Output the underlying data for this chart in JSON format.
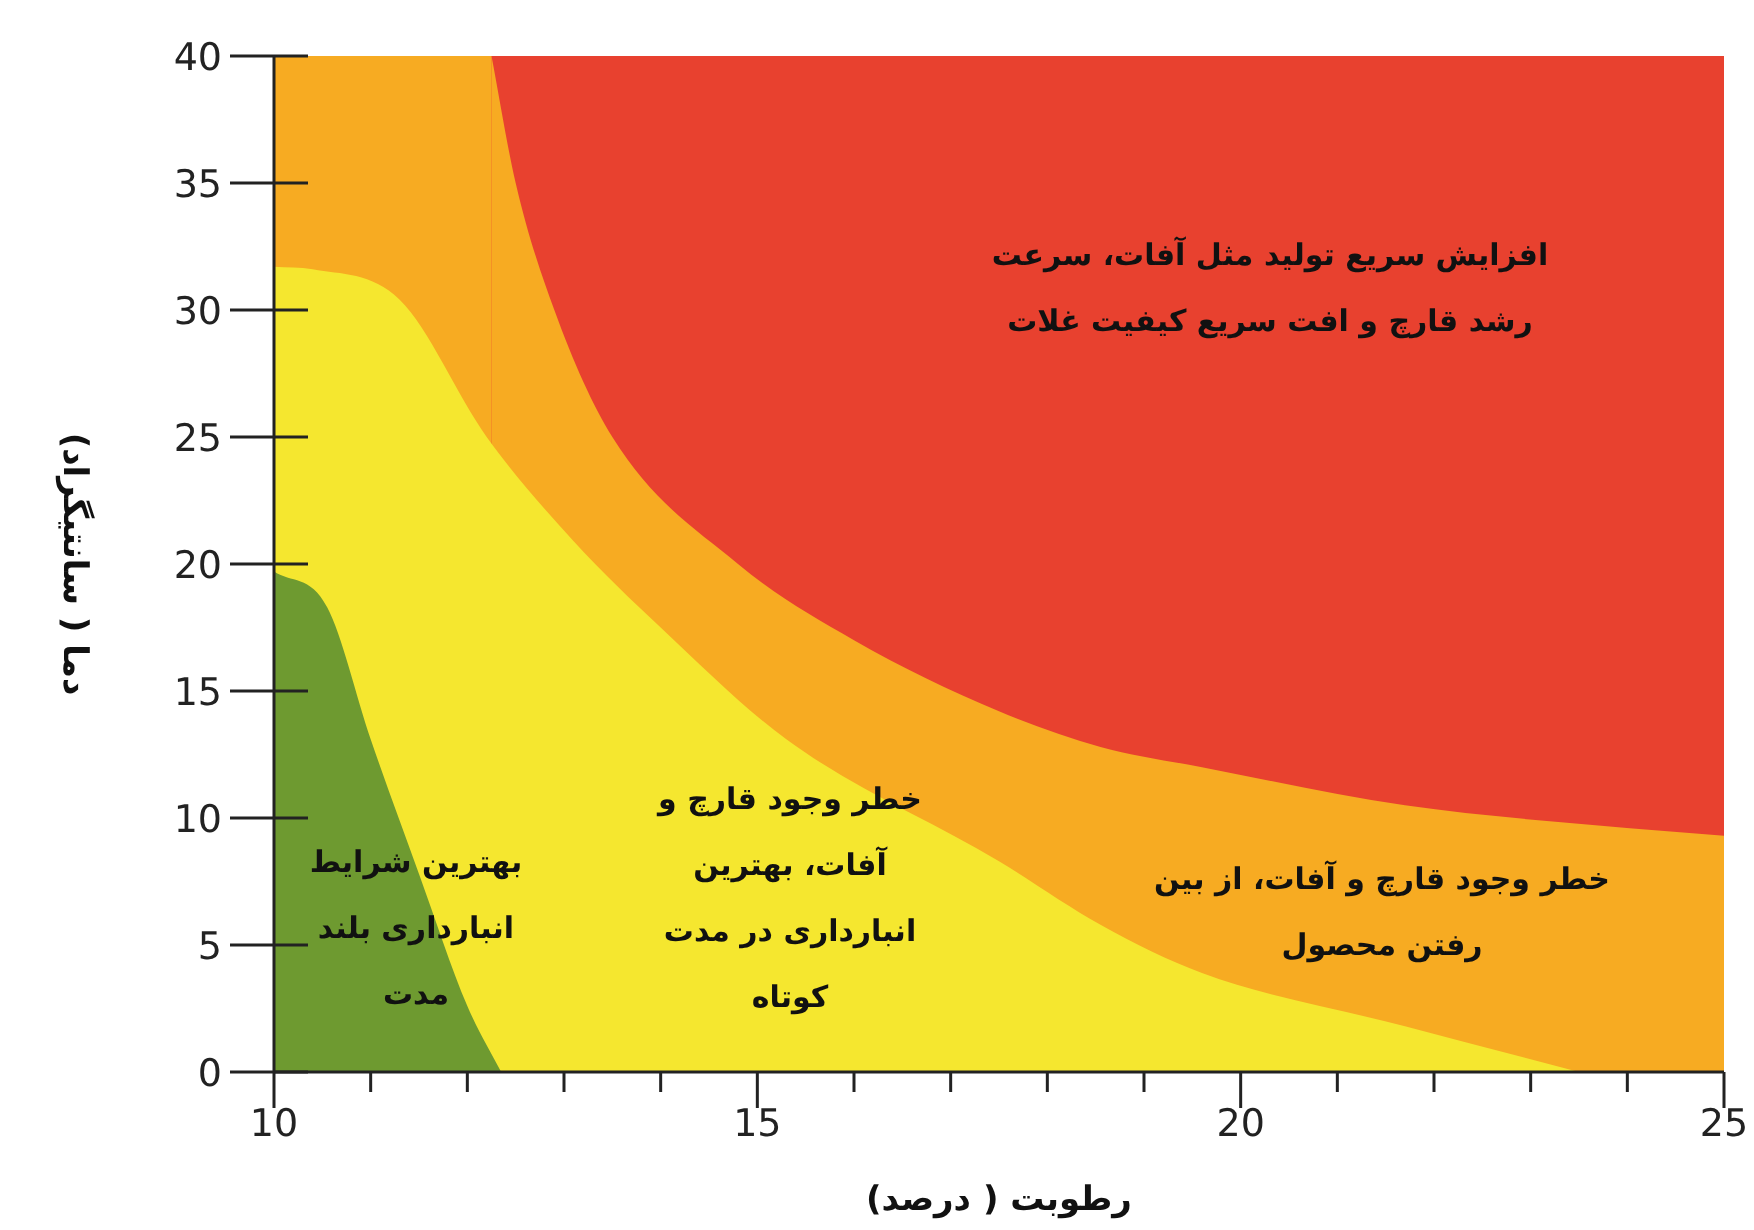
{
  "chart_data": {
    "type": "area",
    "xlabel": "رطوبت ( درصد)",
    "ylabel": "دما ( سانتیگراد)",
    "xlim": [
      10,
      25
    ],
    "ylim": [
      0,
      40
    ],
    "xticks": [
      10,
      {
        "value": 11,
        "label": null
      },
      {
        "value": 12,
        "label": null
      },
      {
        "value": 13,
        "label": null
      },
      {
        "value": 14,
        "label": null
      },
      15,
      {
        "value": 16,
        "label": null
      },
      {
        "value": 17,
        "label": null
      },
      {
        "value": 18,
        "label": null
      },
      {
        "value": 19,
        "label": null
      },
      20,
      {
        "value": 21,
        "label": null
      },
      {
        "value": 22,
        "label": null
      },
      {
        "value": 23,
        "label": null
      },
      {
        "value": 24,
        "label": null
      },
      25
    ],
    "yticks": [
      0,
      5,
      10,
      15,
      20,
      25,
      30,
      35,
      40
    ],
    "series": [
      {
        "color": "#f7ab22",
        "x": [
          12.25,
          12.5,
          12.9,
          13.5,
          14.8,
          16,
          17.5,
          18.55,
          19.6,
          21.7,
          23.7,
          25
        ],
        "values": [
          40,
          35,
          30,
          25,
          20,
          17,
          14.2,
          12.8,
          12,
          10.5,
          9.7,
          9.3
        ]
      },
      {
        "color": "#f5e72f",
        "x": [
          10,
          10.4,
          11.3,
          12.2,
          13.1,
          14,
          15.3,
          17.5,
          18.55,
          19.6,
          21.7,
          23.5
        ],
        "values": [
          31.7,
          31.6,
          30.4,
          25,
          20.9,
          17.5,
          13.1,
          8.3,
          5.8,
          3.9,
          1.8,
          0
        ]
      },
      {
        "color": "#6e9a30",
        "x": [
          10,
          10.55,
          11,
          11.5,
          12,
          12.35
        ],
        "values": [
          19.7,
          18.3,
          13.1,
          7.8,
          2.6,
          0
        ]
      }
    ],
    "bands": [
      {
        "axis": "y",
        "from": 0,
        "to": 40,
        "color": "#e8412f"
      },
      {
        "axis": "x",
        "from": 10,
        "to": 12.25,
        "color": "#f7ab22"
      }
    ],
    "annotations": [
      "افزایش سریع تولید مثل آفات، سرعت\nرشد قارچ و افت سریع کیفیت غلات",
      "خطر وجود قارچ و آفات، از بین\nرفتن محصول",
      "خطر وجود قارچ و\nآفات، بهترین\nانبارداری در مدت\nکوتاه",
      "بهترین شرایط\nانبارداری بلند\nمدت"
    ]
  }
}
